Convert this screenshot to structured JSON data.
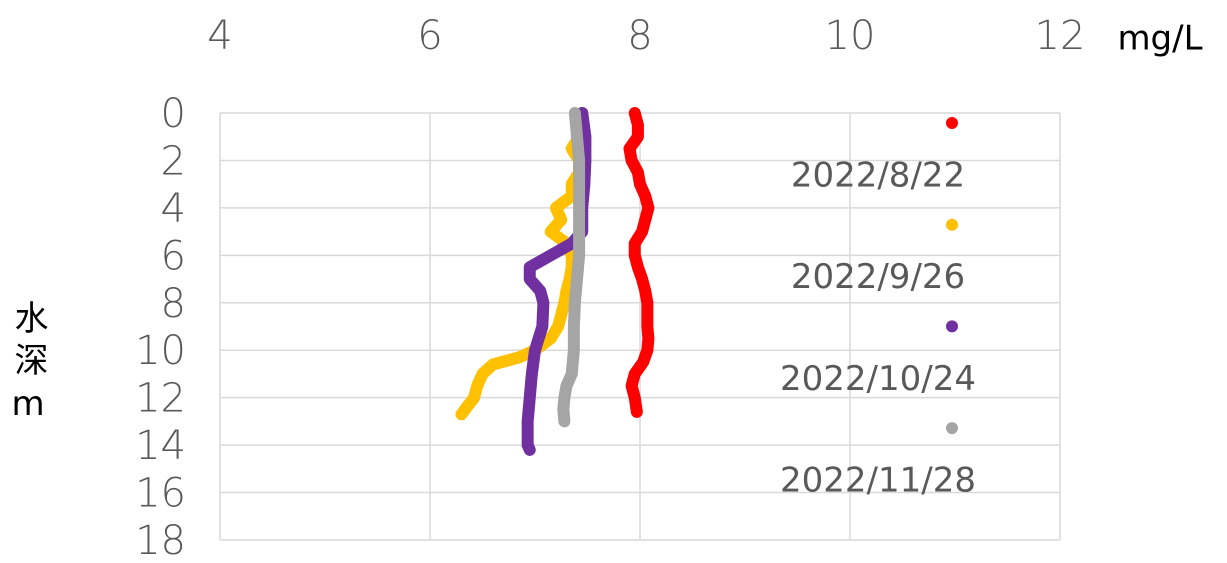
{
  "chart_data": {
    "type": "profile",
    "x_label": "mg/L",
    "y_label": "水深m",
    "xlim": [
      4,
      12
    ],
    "xticks": [
      4,
      6,
      8,
      10,
      12
    ],
    "ylim": [
      0,
      18
    ],
    "yticks": [
      0,
      2,
      4,
      6,
      8,
      10,
      12,
      14,
      16,
      18
    ],
    "y_inverted": true,
    "x_axis_position": "top",
    "grid": true,
    "legend": "right",
    "series": [
      {
        "name": "2022/8/22",
        "color": "#ff0000",
        "x": [
          7.95,
          7.98,
          7.98,
          7.9,
          7.92,
          7.98,
          8.0,
          8.05,
          8.08,
          8.05,
          8.02,
          7.95,
          7.95,
          7.98,
          8.02,
          8.05,
          8.07,
          8.07,
          8.07,
          8.08,
          8.07,
          8.03,
          7.95,
          7.92,
          7.95,
          7.97
        ],
        "y": [
          0,
          0.5,
          1.0,
          1.5,
          2.0,
          2.5,
          3.0,
          3.5,
          4.0,
          4.5,
          5.0,
          5.5,
          6.0,
          6.5,
          7.0,
          7.5,
          8.0,
          8.5,
          9.0,
          9.5,
          10.0,
          10.5,
          11.0,
          11.5,
          12.0,
          12.6
        ]
      },
      {
        "name": "2022/9/26",
        "color": "#ffc000",
        "x": [
          7.45,
          7.45,
          7.42,
          7.35,
          7.42,
          7.42,
          7.35,
          7.35,
          7.2,
          7.25,
          7.15,
          7.3,
          7.35,
          7.35,
          7.33,
          7.3,
          7.28,
          7.25,
          7.22,
          7.15,
          7.0,
          6.85,
          6.6,
          6.5,
          6.45,
          6.42,
          6.35,
          6.3
        ],
        "y": [
          0,
          0.5,
          1.0,
          1.5,
          2.0,
          2.5,
          3.0,
          3.5,
          4.0,
          4.5,
          5.0,
          5.5,
          6.0,
          6.5,
          7.0,
          7.5,
          8.0,
          8.5,
          9.0,
          9.5,
          10.0,
          10.3,
          10.6,
          11.0,
          11.5,
          12.0,
          12.4,
          12.7
        ]
      },
      {
        "name": "2022/10/24",
        "color": "#7030a0",
        "x": [
          7.45,
          7.48,
          7.48,
          7.47,
          7.45,
          7.45,
          7.35,
          7.15,
          6.95,
          6.95,
          7.05,
          7.08,
          7.07,
          7.0,
          6.97,
          6.95,
          6.93,
          6.93,
          6.95
        ],
        "y": [
          0,
          1,
          2,
          3,
          4,
          5,
          5.5,
          6,
          6.5,
          7,
          7.5,
          8,
          9,
          10,
          11,
          12,
          13,
          14,
          14.2
        ]
      },
      {
        "name": "2022/11/28",
        "color": "#a5a5a5",
        "x": [
          7.38,
          7.4,
          7.42,
          7.42,
          7.42,
          7.42,
          7.42,
          7.4,
          7.38,
          7.37,
          7.37,
          7.35,
          7.3,
          7.28,
          7.27,
          7.28
        ],
        "y": [
          0,
          1,
          2,
          3,
          4,
          5,
          6,
          7,
          8,
          9,
          10,
          11,
          11.5,
          12,
          12.5,
          13
        ]
      }
    ]
  }
}
